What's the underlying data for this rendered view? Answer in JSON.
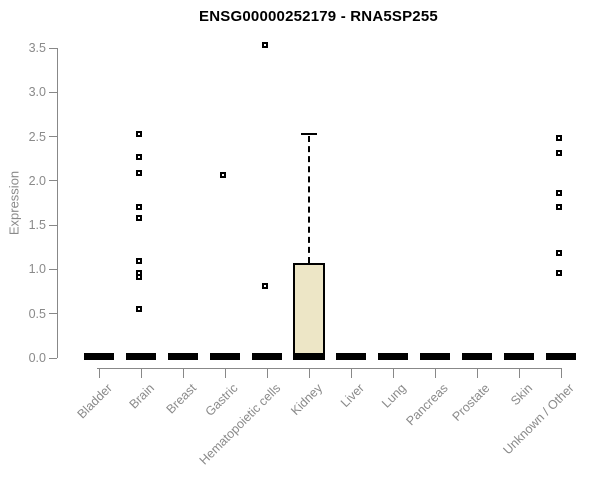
{
  "chart_data": {
    "type": "box",
    "title": "ENSG00000252179 - RNA5SP255",
    "ylabel": "Expression",
    "xlabel": "",
    "ylim": [
      0,
      3.5
    ],
    "grid": false,
    "legend": null,
    "y_ticks": [
      0.0,
      0.5,
      1.0,
      1.5,
      2.0,
      2.5,
      3.0,
      3.5
    ],
    "y_tick_labels": [
      "0.0",
      "0.5",
      "1.0",
      "1.5",
      "2.0",
      "2.5",
      "3.0",
      "3.5"
    ],
    "categories": [
      "Bladder",
      "Brain",
      "Breast",
      "Gastric",
      "Hematopoietic cells",
      "Kidney",
      "Liver",
      "Lung",
      "Pancreas",
      "Prostate",
      "Skin",
      "Unknown / Other"
    ],
    "series": [
      {
        "category": "Bladder",
        "q1": 0.0,
        "median": 0.02,
        "q3": 0.04,
        "whisker_low": 0.0,
        "whisker_high": 0.04,
        "outliers": []
      },
      {
        "category": "Brain",
        "q1": 0.0,
        "median": 0.02,
        "q3": 0.04,
        "whisker_low": 0.0,
        "whisker_high": 0.04,
        "outliers": [
          2.53,
          2.27,
          2.09,
          1.7,
          1.58,
          1.09,
          0.96,
          0.91,
          0.55
        ]
      },
      {
        "category": "Breast",
        "q1": 0.0,
        "median": 0.02,
        "q3": 0.04,
        "whisker_low": 0.0,
        "whisker_high": 0.04,
        "outliers": []
      },
      {
        "category": "Gastric",
        "q1": 0.0,
        "median": 0.02,
        "q3": 0.04,
        "whisker_low": 0.0,
        "whisker_high": 0.04,
        "outliers": [
          2.07
        ]
      },
      {
        "category": "Hematopoietic cells",
        "q1": 0.0,
        "median": 0.02,
        "q3": 0.04,
        "whisker_low": 0.0,
        "whisker_high": 0.04,
        "outliers": [
          3.53,
          0.81
        ]
      },
      {
        "category": "Kidney",
        "q1": 0.0,
        "median": 0.02,
        "q3": 1.07,
        "whisker_low": 0.0,
        "whisker_high": 2.53,
        "outliers": []
      },
      {
        "category": "Liver",
        "q1": 0.0,
        "median": 0.02,
        "q3": 0.04,
        "whisker_low": 0.0,
        "whisker_high": 0.04,
        "outliers": []
      },
      {
        "category": "Lung",
        "q1": 0.0,
        "median": 0.02,
        "q3": 0.04,
        "whisker_low": 0.0,
        "whisker_high": 0.04,
        "outliers": []
      },
      {
        "category": "Pancreas",
        "q1": 0.0,
        "median": 0.02,
        "q3": 0.04,
        "whisker_low": 0.0,
        "whisker_high": 0.04,
        "outliers": []
      },
      {
        "category": "Prostate",
        "q1": 0.0,
        "median": 0.02,
        "q3": 0.04,
        "whisker_low": 0.0,
        "whisker_high": 0.04,
        "outliers": []
      },
      {
        "category": "Skin",
        "q1": 0.0,
        "median": 0.02,
        "q3": 0.04,
        "whisker_low": 0.0,
        "whisker_high": 0.04,
        "outliers": []
      },
      {
        "category": "Unknown / Other",
        "q1": 0.0,
        "median": 0.02,
        "q3": 0.04,
        "whisker_low": 0.0,
        "whisker_high": 0.04,
        "outliers": [
          2.48,
          2.31,
          1.86,
          1.7,
          1.19,
          0.96
        ]
      }
    ],
    "colors": {
      "box_fill": "#ede6c6",
      "box_border": "#000000",
      "median": "#000000",
      "outlier": "#000000",
      "axis_line": "#888888",
      "axis_text": "#8a8a8a",
      "title_text": "#000000",
      "background": "#ffffff"
    }
  }
}
